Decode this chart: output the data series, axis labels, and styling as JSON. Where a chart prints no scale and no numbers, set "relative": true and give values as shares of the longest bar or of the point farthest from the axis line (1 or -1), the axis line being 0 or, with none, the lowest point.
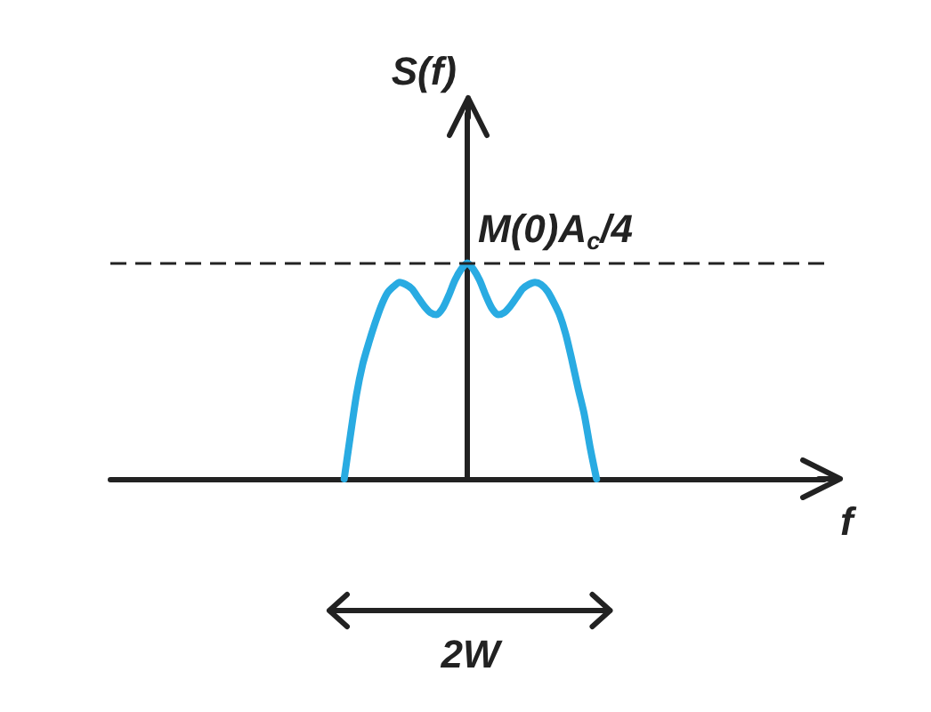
{
  "chart_data": {
    "type": "line",
    "relative": true,
    "xlabel": "f",
    "ylabel": "S(f)",
    "categories": [
      null,
      null,
      null,
      null,
      null,
      null,
      null,
      null,
      null,
      null,
      null,
      null,
      null,
      null,
      null,
      null,
      null,
      null,
      null,
      null,
      null,
      null,
      null,
      null,
      null,
      null,
      null,
      null,
      null,
      null,
      null,
      null,
      null,
      null,
      null,
      null,
      null,
      null,
      null,
      null,
      null,
      null,
      null,
      null,
      null,
      null,
      null,
      null,
      null,
      null,
      null,
      null,
      null,
      null,
      null,
      null,
      null,
      null,
      null,
      null,
      null,
      null,
      null,
      null,
      null,
      null,
      null,
      null,
      null,
      null,
      null,
      null,
      null,
      null,
      null,
      null,
      null,
      null,
      null,
      null,
      null,
      null,
      null,
      null,
      null,
      null,
      null,
      null,
      null,
      null,
      null,
      null,
      null,
      null,
      null,
      null,
      null,
      null,
      null,
      null,
      null,
      null,
      null,
      null,
      null,
      null,
      null,
      null,
      null,
      null,
      null,
      null,
      null,
      null,
      null,
      null,
      null
    ],
    "series": [
      {
        "color": "#29abe2",
        "values": [
          null,
          null,
          null,
          null,
          null,
          null,
          null,
          null,
          null,
          null,
          null,
          null,
          null,
          null,
          null,
          null,
          null,
          null,
          null,
          null,
          null,
          null,
          null,
          null,
          null,
          null,
          null,
          null,
          null,
          null,
          null,
          null,
          null,
          null,
          null,
          null,
          null,
          null,
          0,
          0.2,
          0.39,
          0.53,
          0.63,
          0.72,
          0.8,
          0.86,
          0.89,
          0.91,
          0.9,
          0.88,
          0.84,
          0.8,
          0.77,
          0.76,
          0.79,
          0.85,
          0.92,
          0.97,
          1,
          0.97,
          0.92,
          0.85,
          0.79,
          0.76,
          0.77,
          0.8,
          0.84,
          0.88,
          0.9,
          0.91,
          0.9,
          0.87,
          0.82,
          0.76,
          0.67,
          0.55,
          0.42,
          0.3,
          0.14,
          0,
          null,
          null,
          null,
          null,
          null,
          null,
          null,
          null,
          null,
          null,
          null,
          null,
          null,
          null,
          null,
          null,
          null,
          null,
          null,
          null,
          null,
          null,
          null,
          null,
          null,
          null,
          null,
          null,
          null,
          null,
          null,
          null,
          null,
          null,
          null,
          null,
          null
        ]
      }
    ],
    "ref_lines": [
      {
        "axis": "y",
        "value": 1,
        "label": "M(0)A$_{c}$/4",
        "color": "#222222",
        "line_style": "dashed"
      }
    ],
    "annotations": [
      "2W"
    ],
    "grid": false
  }
}
